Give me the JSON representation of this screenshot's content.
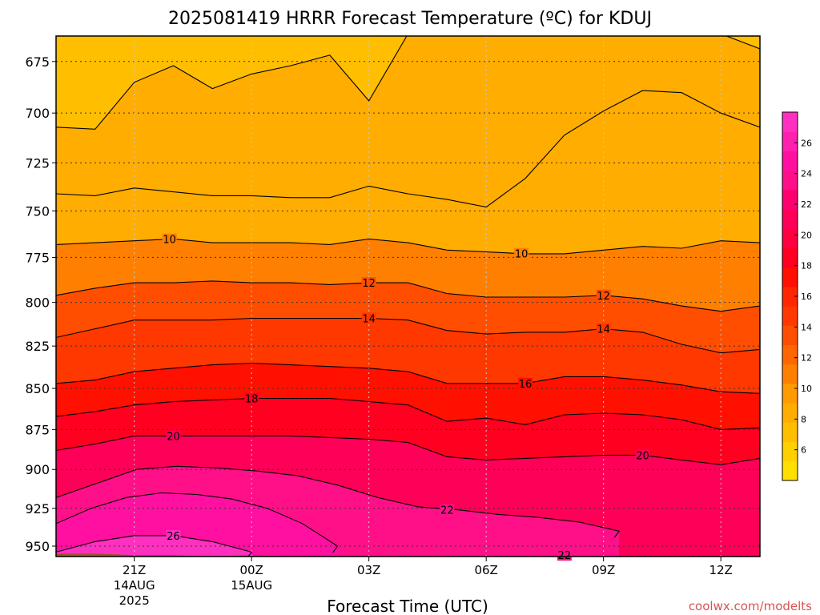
{
  "chart_data": {
    "type": "heatmap",
    "title": "2025081419 HRRR Forecast Temperature (ºC) for KDUJ",
    "xlabel": "Forecast Time (UTC)",
    "ylabel": "",
    "y_scale": "log",
    "y_ticks": [
      675,
      700,
      725,
      750,
      775,
      800,
      825,
      850,
      875,
      900,
      925,
      950
    ],
    "ylim": [
      957,
      663
    ],
    "x_ticks": [
      {
        "hour": 21,
        "label": "21Z",
        "sub1": "14AUG",
        "sub2": "2025"
      },
      {
        "hour": 24,
        "label": "00Z",
        "sub1": "15AUG",
        "sub2": ""
      },
      {
        "hour": 27,
        "label": "03Z",
        "sub1": "",
        "sub2": ""
      },
      {
        "hour": 30,
        "label": "06Z",
        "sub1": "",
        "sub2": ""
      },
      {
        "hour": 33,
        "label": "09Z",
        "sub1": "",
        "sub2": ""
      },
      {
        "hour": 36,
        "label": "12Z",
        "sub1": "",
        "sub2": ""
      }
    ],
    "xlim": [
      19,
      37
    ],
    "x_hours": [
      19,
      20,
      21,
      22,
      23,
      24,
      25,
      26,
      27,
      28,
      29,
      30,
      31,
      32,
      33,
      34,
      35,
      36,
      37
    ],
    "contour_levels": [
      6,
      8,
      10,
      12,
      14,
      16,
      18,
      20,
      22,
      24,
      26
    ],
    "isotherms": [
      {
        "level": 8,
        "p": [
          707,
          708,
          685,
          677,
          688,
          681,
          677,
          672,
          694,
          662,
          662,
          662,
          662,
          662,
          662,
          662,
          662,
          662,
          669
        ],
        "label": false
      },
      {
        "level": 8,
        "p": [
          741,
          742,
          738,
          740,
          742,
          742,
          743,
          743,
          737,
          741,
          744,
          748,
          733,
          711,
          699,
          689,
          690,
          700,
          707
        ],
        "label": false
      },
      {
        "level": 10,
        "p": [
          768,
          767,
          766,
          765,
          767,
          767,
          767,
          768,
          765,
          767,
          771,
          772,
          773,
          773,
          771,
          769,
          770,
          766,
          767
        ],
        "label": true,
        "label_hour": 21.9,
        "label2_hour": 30.9
      },
      {
        "level": 12,
        "p": [
          796,
          792,
          789,
          789,
          788,
          789,
          789,
          790,
          789,
          789,
          795,
          797,
          797,
          797,
          796,
          798,
          802,
          805,
          802
        ],
        "label": true,
        "label_hour": 27,
        "label2_hour": 33
      },
      {
        "level": 14,
        "p": [
          820,
          815,
          810,
          810,
          810,
          809,
          809,
          809,
          809,
          810,
          816,
          818,
          817,
          817,
          815,
          817,
          824,
          829,
          827
        ],
        "label": true,
        "label_hour": 27,
        "label2_hour": 33
      },
      {
        "level": 16,
        "p": [
          847,
          845,
          840,
          838,
          836,
          835,
          836,
          837,
          838,
          840,
          847,
          847,
          847,
          843,
          843,
          845,
          848,
          852,
          853
        ],
        "label": true,
        "label_hour": 31
      },
      {
        "level": 18,
        "p": [
          867,
          864,
          860,
          858,
          857,
          856,
          856,
          856,
          858,
          860,
          870,
          868,
          872,
          866,
          865,
          866,
          869,
          875,
          874
        ],
        "label": true,
        "label_hour": 24
      },
      {
        "level": 20,
        "p": [
          888,
          884,
          879,
          879,
          879,
          879,
          879,
          880,
          881,
          883,
          892,
          894,
          893,
          892,
          891,
          891,
          894,
          897,
          893
        ],
        "label": true,
        "label_hour": 22,
        "label2_hour": 34
      },
      {
        "level": 22,
        "p": [
          918,
          909,
          900,
          898,
          899,
          901,
          904,
          910,
          918,
          924,
          926,
          929,
          931,
          934,
          940
        ],
        "label": true,
        "label_hour": 29,
        "closed_to_hour": 33.4
      },
      {
        "level": 24,
        "p": [
          935,
          925,
          918,
          915,
          916,
          919,
          925,
          935,
          950
        ],
        "label": false,
        "closed_to_hour": 26.2
      },
      {
        "level": 26,
        "p": [
          954,
          947,
          943,
          943,
          947,
          954
        ],
        "label": true,
        "label_hour": 22,
        "closed_to_hour": 24
      }
    ],
    "extra_labels": [
      {
        "text": "22",
        "hour": 32,
        "p": 956
      }
    ],
    "ground_p": [
      955,
      955,
      956,
      956,
      957,
      956,
      957,
      958,
      958,
      958,
      958,
      957,
      957,
      957,
      957,
      958,
      958,
      958,
      959
    ],
    "colorbar": {
      "ticks": [
        6,
        8,
        10,
        12,
        14,
        16,
        18,
        20,
        22,
        24,
        26
      ],
      "bounds": [
        4,
        28
      ],
      "colors": [
        "#ffe000",
        "#ffd000",
        "#ffbf00",
        "#ffad00",
        "#ff9a00",
        "#ff8000",
        "#ff6600",
        "#ff4e00",
        "#ff3800",
        "#ff2600",
        "#ff1000",
        "#ff0020",
        "#ff0040",
        "#ff0058",
        "#ff0070",
        "#ff1088",
        "#ff10a0",
        "#ff20b0",
        "#ff30c0"
      ]
    },
    "ground_color": "#a0522d",
    "grid": true,
    "legend": "right"
  },
  "watermark": "coolwx.com/modelts"
}
